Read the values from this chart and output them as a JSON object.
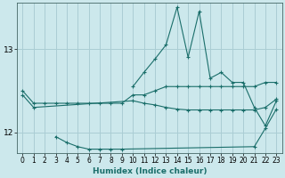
{
  "xlabel": "Humidex (Indice chaleur)",
  "bg_color": "#cce8ec",
  "grid_color": "#aacdd4",
  "line_color": "#1a6e6a",
  "xlim": [
    -0.5,
    23.5
  ],
  "ylim": [
    11.75,
    13.55
  ],
  "yticks": [
    12,
    13
  ],
  "xticks": [
    0,
    1,
    2,
    3,
    4,
    5,
    6,
    7,
    8,
    9,
    10,
    11,
    12,
    13,
    14,
    15,
    16,
    17,
    18,
    19,
    20,
    21,
    22,
    23
  ],
  "series": [
    [
      12.5,
      12.35,
      12.35,
      12.35,
      12.35,
      12.35,
      12.35,
      12.35,
      12.35,
      12.35,
      12.45,
      12.45,
      12.5,
      12.55,
      12.55,
      12.55,
      12.55,
      12.55,
      12.55,
      12.55,
      12.55,
      12.55,
      12.6,
      12.6
    ],
    [
      12.45,
      12.3,
      null,
      null,
      null,
      null,
      null,
      null,
      null,
      null,
      12.38,
      12.35,
      12.33,
      12.3,
      12.28,
      12.27,
      12.27,
      12.27,
      12.27,
      12.27,
      12.27,
      12.27,
      12.3,
      12.4
    ],
    [
      null,
      null,
      null,
      null,
      null,
      null,
      null,
      null,
      null,
      null,
      12.55,
      12.72,
      12.88,
      13.05,
      13.5,
      12.9,
      13.45,
      12.65,
      12.72,
      12.6,
      12.6,
      12.3,
      12.08,
      12.38
    ],
    [
      null,
      null,
      null,
      11.95,
      11.88,
      11.83,
      11.8,
      11.8,
      11.8,
      11.8,
      null,
      null,
      null,
      null,
      null,
      null,
      null,
      null,
      null,
      null,
      null,
      11.83,
      12.05,
      12.28
    ]
  ]
}
